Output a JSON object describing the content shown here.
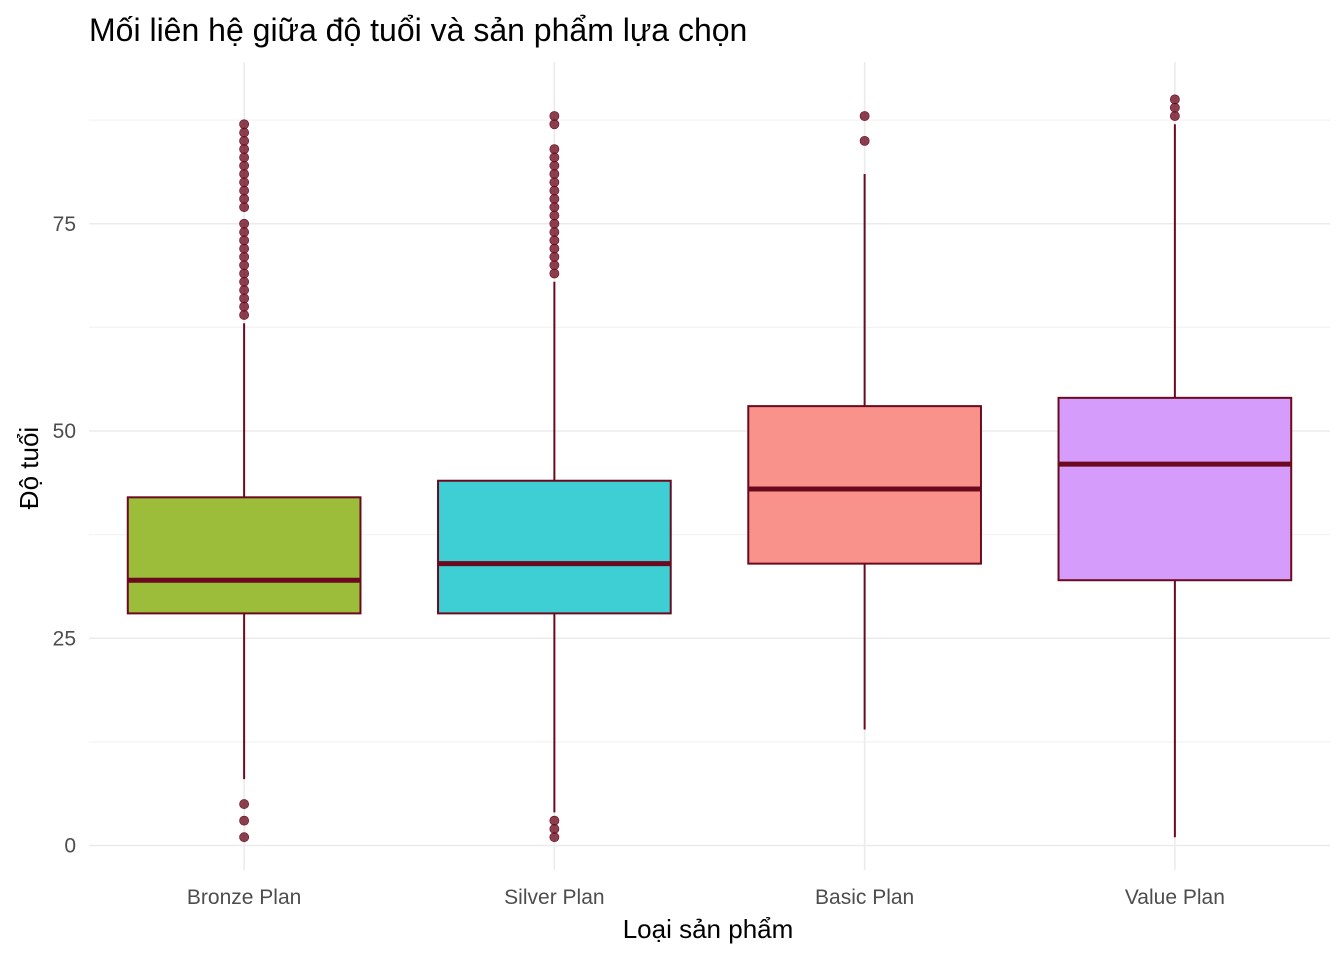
{
  "chart_data": {
    "type": "boxplot",
    "title": "Mối liên hệ giữa độ tuổi và sản phẩm lựa chọn",
    "xlabel": "Loại sản phẩm",
    "ylabel": "Độ tuổi",
    "ylim": [
      -3,
      94
    ],
    "y_ticks": [
      0,
      25,
      50,
      75
    ],
    "grid": true,
    "outline_color": "#6b0a1e",
    "categories": [
      "Bronze Plan",
      "Silver Plan",
      "Basic Plan",
      "Value Plan"
    ],
    "boxes": [
      {
        "category": "Bronze Plan",
        "color": "#9bbd3a",
        "whisker_low": 8,
        "q1": 28,
        "median": 32,
        "q3": 42,
        "whisker_high": 63,
        "outliers": [
          1,
          3,
          5,
          64,
          65,
          66,
          67,
          68,
          69,
          70,
          71,
          72,
          73,
          74,
          75,
          77,
          78,
          79,
          80,
          81,
          82,
          83,
          84,
          85,
          86,
          87
        ]
      },
      {
        "category": "Silver Plan",
        "color": "#3dcfd3",
        "whisker_low": 4,
        "q1": 28,
        "median": 34,
        "q3": 44,
        "whisker_high": 68,
        "outliers": [
          1,
          2,
          3,
          69,
          70,
          71,
          72,
          73,
          74,
          75,
          76,
          77,
          78,
          79,
          80,
          81,
          82,
          83,
          84,
          87,
          88
        ]
      },
      {
        "category": "Basic Plan",
        "color": "#f8928a",
        "whisker_low": 14,
        "q1": 34,
        "median": 43,
        "q3": 53,
        "whisker_high": 81,
        "outliers": [
          85,
          88
        ]
      },
      {
        "category": "Value Plan",
        "color": "#d69cfb",
        "whisker_low": 1,
        "q1": 32,
        "median": 46,
        "q3": 54,
        "whisker_high": 87,
        "outliers": [
          88,
          89,
          90
        ]
      }
    ]
  }
}
